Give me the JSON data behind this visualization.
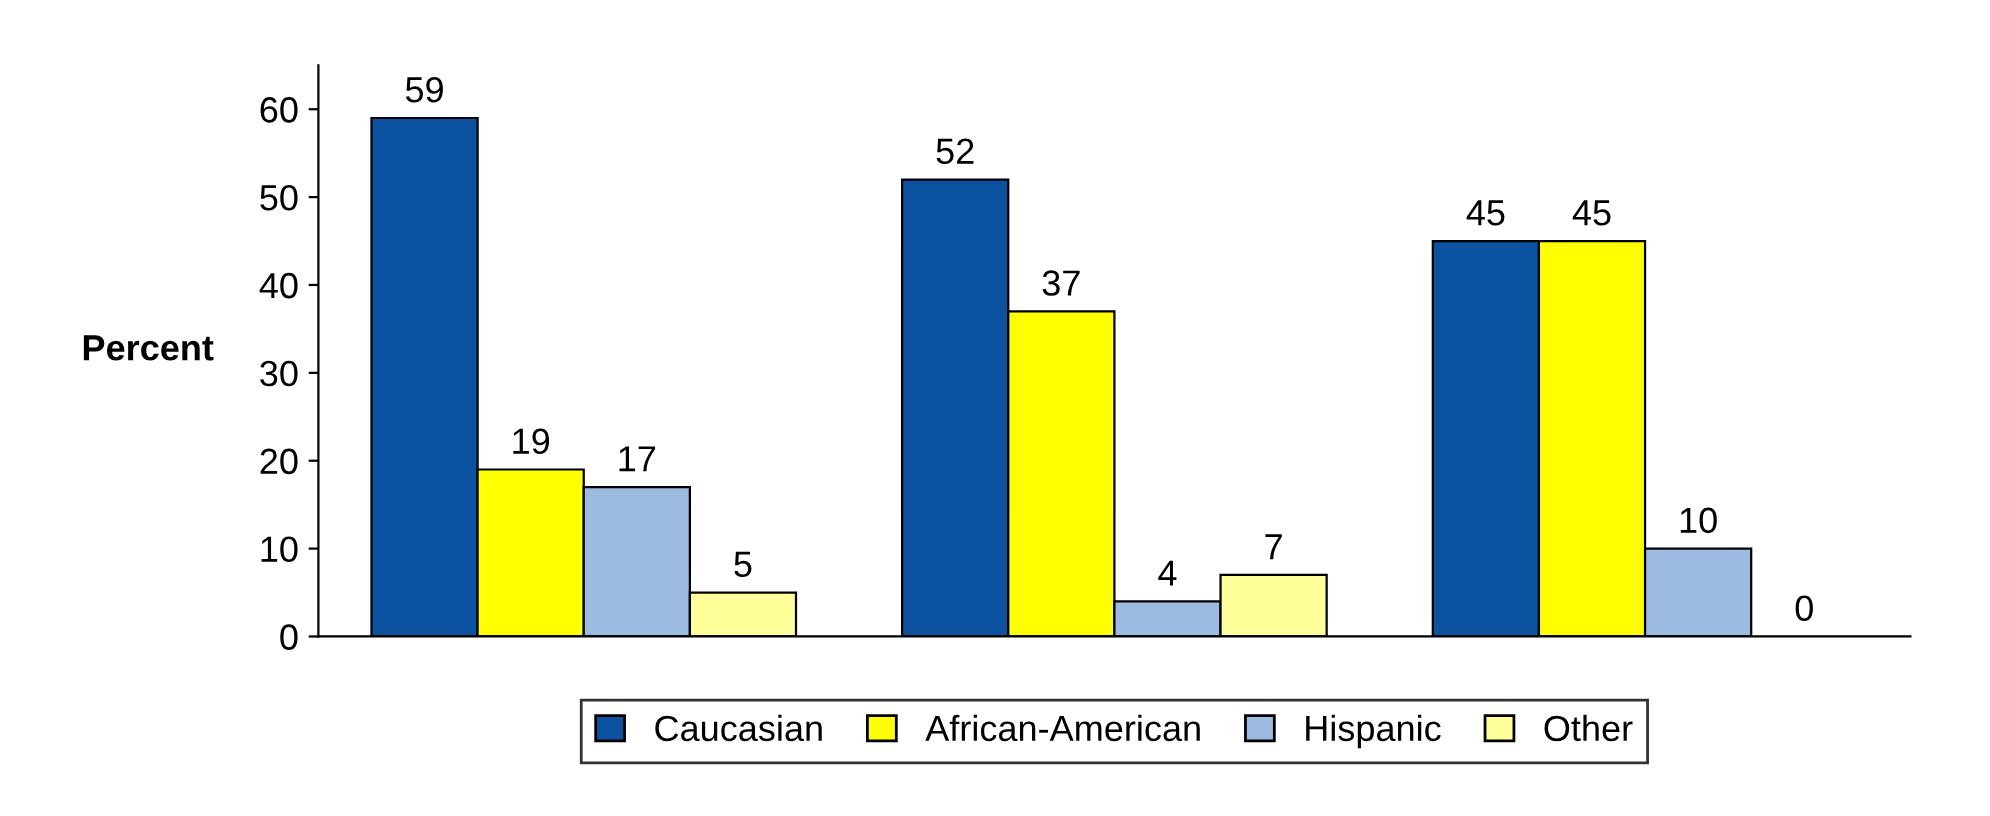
{
  "chart_data": {
    "type": "bar",
    "ylabel": "Percent",
    "categories": [
      null,
      null,
      null
    ],
    "series": [
      {
        "name": "Caucasian",
        "color": "#0b52a0",
        "values": [
          59,
          52,
          45
        ]
      },
      {
        "name": "African-American",
        "color": "#ffff00",
        "values": [
          19,
          37,
          45
        ]
      },
      {
        "name": "Hispanic",
        "color": "#9dbbe0",
        "values": [
          17,
          4,
          10
        ]
      },
      {
        "name": "Other",
        "color": "#ffff99",
        "values": [
          5,
          7,
          0
        ]
      }
    ],
    "ylim": [
      0,
      65
    ],
    "yticks": [
      0,
      10,
      20,
      30,
      40,
      50,
      60
    ],
    "grid": false,
    "legend": "bottom",
    "data_labels": true
  }
}
